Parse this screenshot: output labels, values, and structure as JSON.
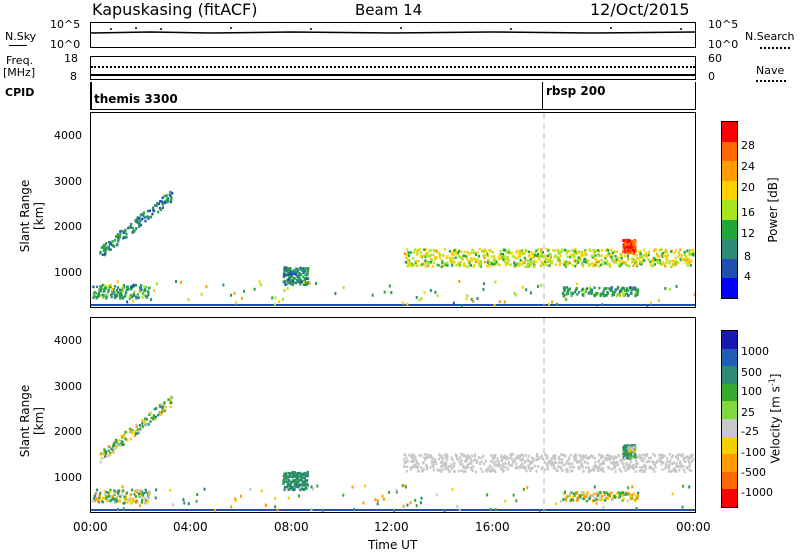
{
  "header": {
    "station": "Kapuskasing (fitACF)",
    "beam": "Beam 14",
    "date": "12/Oct/2015"
  },
  "left_labels": {
    "nsky": "N.Sky",
    "freq": "Freq.",
    "freq_unit": "[MHz]",
    "cpid": "CPID"
  },
  "right_labels": {
    "nsearch": "N.Search",
    "nave": "Nave"
  },
  "top_ticks": {
    "noise_left": [
      "10^5",
      "10^0"
    ],
    "noise_right": [
      "10^5",
      "10^0"
    ],
    "freq_left": [
      "18",
      "8"
    ],
    "nave_right": [
      "60",
      "0"
    ]
  },
  "cpid": {
    "segments": [
      {
        "label": "themis 3300",
        "start_hour": 0
      },
      {
        "label": "rbsp 200",
        "start_hour": 18
      }
    ]
  },
  "axes": {
    "ylabel": "Slant Range [km]",
    "yticks": [
      "4000",
      "3000",
      "2000",
      "1000"
    ],
    "xticks": [
      "00:00",
      "04:00",
      "08:00",
      "12:00",
      "16:00",
      "20:00",
      "00:00"
    ],
    "xlabel": "Time UT"
  },
  "colorbars": {
    "power": {
      "title": "Power [dB]",
      "ticks": [
        "28",
        "24",
        "20",
        "16",
        "12",
        "8",
        "4"
      ],
      "colors": [
        "#ff0000",
        "#ff6a00",
        "#ff9a00",
        "#ffd000",
        "#a8e61e",
        "#21a63a",
        "#2f8a78",
        "#1f4fb0",
        "#0000ff"
      ]
    },
    "velocity": {
      "title": "Velocity [m s",
      "title_sup": "-1",
      "title_end": "]",
      "ticks": [
        "1000",
        "500",
        "100",
        "25",
        "-25",
        "-100",
        "-500",
        "-1000"
      ],
      "colors": [
        "#1818b0",
        "#1f5fb8",
        "#2a8a74",
        "#35a82f",
        "#7fd840",
        "#c8c8c8",
        "#f2d000",
        "#ff9a00",
        "#ff6a00",
        "#ff0000"
      ]
    }
  },
  "chart_data": {
    "type": "heatmap",
    "title": "Kapuskasing (fitACF)",
    "xlabel": "Time UT",
    "ylabel": "Slant Range [km]",
    "xlim_hours": [
      0,
      24
    ],
    "ylim_km": [
      180,
      4500
    ],
    "marker_hour": 18,
    "scatter_clusters": [
      {
        "name": "early-arc",
        "hour_range": [
          0.3,
          3.2
        ],
        "range_km": [
          1400,
          2700
        ],
        "power_db": 8,
        "velocity": 25
      },
      {
        "name": "near-range-early",
        "hour_range": [
          0,
          2.3
        ],
        "range_km": [
          400,
          700
        ],
        "power_db": 10,
        "velocity": 25
      },
      {
        "name": "morning-patch",
        "hour_range": [
          7.6,
          8.6
        ],
        "range_km": [
          700,
          1100
        ],
        "power_db": 8,
        "velocity": 200
      },
      {
        "name": "ground-scatter-band",
        "hour_range": [
          12.4,
          23.9
        ],
        "range_km": [
          1100,
          1500
        ],
        "power_db": 16,
        "velocity": 0
      },
      {
        "name": "evening-patch",
        "hour_range": [
          18.7,
          21.7
        ],
        "range_km": [
          450,
          650
        ],
        "power_db": 10,
        "velocity": -25
      },
      {
        "name": "high-power-spot",
        "hour_range": [
          21.1,
          21.6
        ],
        "range_km": [
          1400,
          1700
        ],
        "power_db": 28,
        "velocity": 100
      }
    ]
  }
}
